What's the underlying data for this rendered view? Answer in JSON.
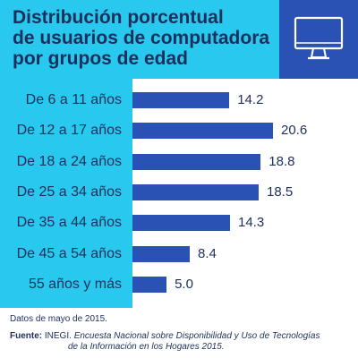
{
  "title": {
    "lines": [
      "Distribución porcentual",
      "de usuarios de computadora",
      "por grupos de edad"
    ]
  },
  "icon": {
    "name": "computer-monitor-icon",
    "bg": "#2a52b4",
    "stroke": "#ffffff"
  },
  "colors": {
    "background": "#29c8ee",
    "bar": "#2a52b4",
    "text": "#1d2f5a",
    "plot_bg": "#ffffff"
  },
  "chart_data": {
    "type": "bar",
    "orientation": "horizontal",
    "categories": [
      "De 6 a 11 años",
      "De 12 a 17 años",
      "De 18 a 24 años",
      "De 25 a 34 años",
      "De 35 a 44 años",
      "De 45 a 54 años",
      "55 años y más"
    ],
    "values": [
      14.2,
      20.6,
      18.8,
      18.5,
      14.3,
      8.4,
      5.0
    ],
    "value_labels": [
      "14.2",
      "20.6",
      "18.8",
      "18.5",
      "14.3",
      "8.4",
      "5.0"
    ],
    "xlim": [
      0,
      22
    ],
    "grid": false,
    "legend": "none"
  },
  "footer": {
    "note": "Datos de mayo de 2015.",
    "source_label": "Fuente:",
    "source_org": "INEGI.",
    "source_title_line1": "Encuesta Nacional sobre Disponibilidad y Uso de Tecnologías",
    "source_title_line2": "de la Información en los Hogares 2015."
  }
}
